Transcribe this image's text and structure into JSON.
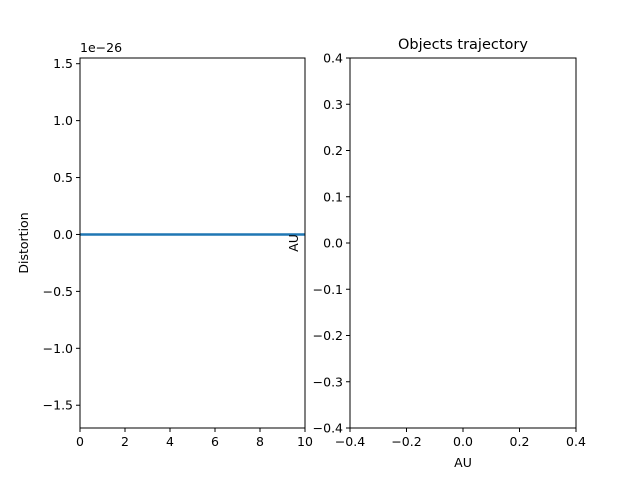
{
  "chart_data": [
    {
      "type": "line",
      "title": "",
      "xlabel": "",
      "ylabel": "Distortion",
      "y_offset_label": "1e−26",
      "xlim": [
        0,
        10
      ],
      "ylim": [
        -1.7,
        1.55
      ],
      "xticks": [
        0,
        2,
        4,
        6,
        8,
        10
      ],
      "xtick_labels": [
        "0",
        "2",
        "4",
        "6",
        "8",
        "10"
      ],
      "yticks": [
        -1.5,
        -1.0,
        -0.5,
        0.0,
        0.5,
        1.0,
        1.5
      ],
      "ytick_labels": [
        "−1.5",
        "−1.0",
        "−0.5",
        "0.0",
        "0.5",
        "1.0",
        "1.5"
      ],
      "grid": false,
      "series": [
        {
          "color": "#1f77b4",
          "x": [
            0,
            1,
            2,
            3,
            4,
            5,
            6,
            7,
            8,
            9,
            10
          ],
          "values": [
            0,
            0,
            0,
            0,
            0,
            0,
            0,
            0,
            0,
            0,
            0
          ]
        }
      ]
    },
    {
      "type": "scatter",
      "title": "Objects trajectory",
      "xlabel": "AU",
      "ylabel": "AU",
      "xlim": [
        -0.4,
        0.4
      ],
      "ylim": [
        -0.4,
        0.4
      ],
      "xticks": [
        -0.4,
        -0.2,
        0.0,
        0.2,
        0.4
      ],
      "xtick_labels": [
        "−0.4",
        "−0.2",
        "0.0",
        "0.2",
        "0.4"
      ],
      "yticks": [
        -0.4,
        -0.3,
        -0.2,
        -0.1,
        0.0,
        0.1,
        0.2,
        0.3,
        0.4
      ],
      "ytick_labels": [
        "−0.4",
        "−0.3",
        "−0.2",
        "−0.1",
        "0.0",
        "0.1",
        "0.2",
        "0.3",
        "0.4"
      ],
      "grid": false,
      "series": []
    }
  ]
}
